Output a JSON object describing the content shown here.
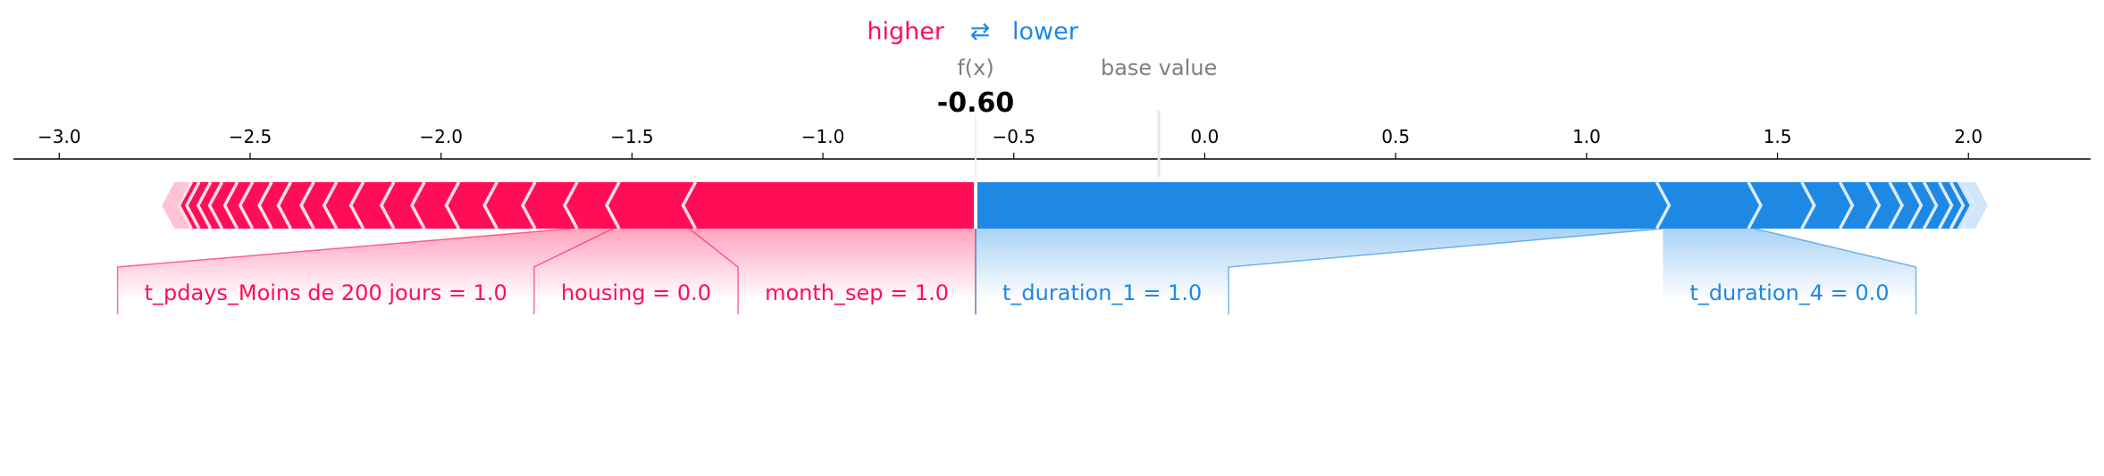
{
  "chart_data": {
    "type": "force",
    "legend": {
      "higher": "higher",
      "arrow": "⇄",
      "lower": "lower",
      "higher_color": "#ff0d57",
      "lower_color": "#1e88e5"
    },
    "fx_label": "f(x)",
    "fx_value": -0.6,
    "fx_text": "-0.60",
    "base_label": "base value",
    "base_value": -0.12,
    "xlim": [
      -3.12,
      2.32
    ],
    "ticks": [
      {
        "value": -3.0,
        "label": "−3.0"
      },
      {
        "value": -2.5,
        "label": "−2.5"
      },
      {
        "value": -2.0,
        "label": "−2.0"
      },
      {
        "value": -1.5,
        "label": "−1.5"
      },
      {
        "value": -1.0,
        "label": "−1.0"
      },
      {
        "value": -0.5,
        "label": "−0.5"
      },
      {
        "value": 0.0,
        "label": "0.0"
      },
      {
        "value": 0.5,
        "label": "0.5"
      },
      {
        "value": 1.0,
        "label": "1.0"
      },
      {
        "value": 1.5,
        "label": "1.5"
      },
      {
        "value": 2.0,
        "label": "2.0"
      }
    ],
    "positive_extent": [
      -2.73,
      -0.6
    ],
    "negative_extent": [
      -0.6,
      2.05
    ],
    "positive_features": [
      {
        "label": "month_sep = 1.0",
        "start": -0.6,
        "end": -1.35
      },
      {
        "label": "housing = 0.0",
        "start": -1.35,
        "end": -1.55
      },
      {
        "label": "t_pdays_Moins de 200 jours = 1.0",
        "start": -1.55,
        "end": -1.66
      }
    ],
    "negative_features": [
      {
        "label": "t_duration_1 = 1.0",
        "start": -0.6,
        "end": 1.2
      },
      {
        "label": "t_duration_4 = 0.0",
        "start": 1.2,
        "end": 1.44
      }
    ],
    "positive_dividers": [
      -1.35,
      -1.55,
      -1.66,
      -1.77,
      -1.87,
      -1.97,
      -2.06,
      -2.14,
      -2.22,
      -2.29,
      -2.35,
      -2.41,
      -2.46,
      -2.51,
      -2.55,
      -2.59,
      -2.62,
      -2.65,
      -2.67
    ],
    "negative_dividers": [
      1.2,
      1.44,
      1.58,
      1.68,
      1.75,
      1.81,
      1.86,
      1.9,
      1.94,
      1.97,
      2.0
    ]
  }
}
